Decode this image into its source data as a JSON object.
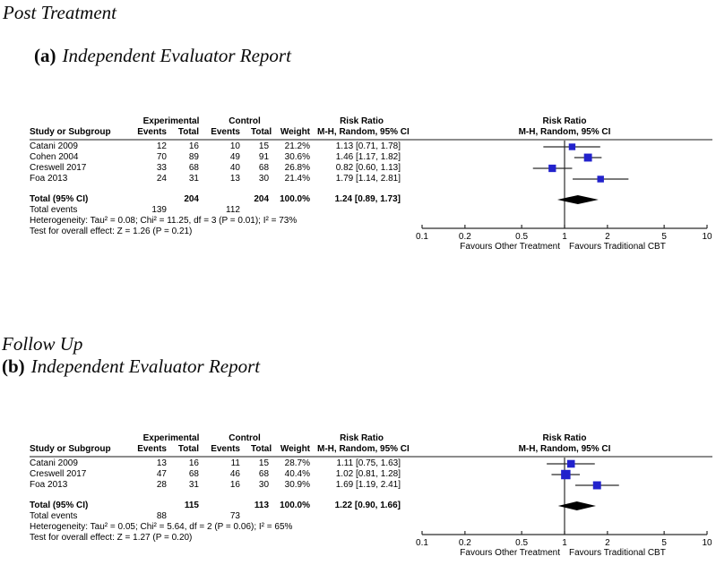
{
  "shared": {
    "study": "Study or Subgroup",
    "experimental": "Experimental",
    "control": "Control",
    "events": "Events",
    "total": "Total",
    "weight": "Weight",
    "colors": {
      "marker": "#2222cc",
      "diamond": "#000000",
      "axis": "#2b2b2b",
      "rule": "#8c8c8c"
    }
  },
  "chart_data": [
    {
      "type": "scatter",
      "subtype": "forest-plot",
      "section_title": "Post Treatment",
      "panel_label": "(a)",
      "panel_title": "Independent Evaluator Report",
      "effect_measure": "Risk Ratio",
      "method": "M-H, Random, 95% CI",
      "x_scale": "log",
      "xlim": [
        0.1,
        10
      ],
      "x_ticks": [
        "0.1",
        "0.2",
        "0.5",
        "1",
        "2",
        "5",
        "10"
      ],
      "favours_left": "Favours Other Treatment",
      "favours_right": "Favours Traditional CBT",
      "studies": [
        {
          "study": "Catani 2009",
          "exp_events": 12,
          "exp_total": 16,
          "ctl_events": 10,
          "ctl_total": 15,
          "weight_pct": 21.2,
          "weight_label": "21.2%",
          "rr": 1.13,
          "ci_low": 0.71,
          "ci_high": 1.78,
          "estimate_label": "1.13 [0.71, 1.78]"
        },
        {
          "study": "Cohen 2004",
          "exp_events": 70,
          "exp_total": 89,
          "ctl_events": 49,
          "ctl_total": 91,
          "weight_pct": 30.6,
          "weight_label": "30.6%",
          "rr": 1.46,
          "ci_low": 1.17,
          "ci_high": 1.82,
          "estimate_label": "1.46 [1.17, 1.82]"
        },
        {
          "study": "Creswell 2017",
          "exp_events": 33,
          "exp_total": 68,
          "ctl_events": 40,
          "ctl_total": 68,
          "weight_pct": 26.8,
          "weight_label": "26.8%",
          "rr": 0.82,
          "ci_low": 0.6,
          "ci_high": 1.13,
          "estimate_label": "0.82 [0.60, 1.13]"
        },
        {
          "study": "Foa 2013",
          "exp_events": 24,
          "exp_total": 31,
          "ctl_events": 13,
          "ctl_total": 30,
          "weight_pct": 21.4,
          "weight_label": "21.4%",
          "rr": 1.79,
          "ci_low": 1.14,
          "ci_high": 2.81,
          "estimate_label": "1.79 [1.14, 2.81]"
        }
      ],
      "total": {
        "label": "Total (95% CI)",
        "exp_total": 204,
        "ctl_total": 204,
        "weight_label": "100.0%",
        "rr": 1.24,
        "ci_low": 0.89,
        "ci_high": 1.73,
        "estimate_label": "1.24 [0.89, 1.73]"
      },
      "total_events": {
        "label": "Total events",
        "exp": 139,
        "ctl": 112
      },
      "heterogeneity": "Heterogeneity: Tau² = 0.08; Chi² = 11.25, df = 3 (P = 0.01); I² = 73%",
      "overall_effect_test": "Test for overall effect: Z = 1.26 (P = 0.21)"
    },
    {
      "type": "scatter",
      "subtype": "forest-plot",
      "section_title": "Follow Up",
      "panel_label": "(b)",
      "panel_title": "Independent Evaluator Report",
      "effect_measure": "Risk Ratio",
      "method": "M-H, Random, 95% CI",
      "x_scale": "log",
      "xlim": [
        0.1,
        10
      ],
      "x_ticks": [
        "0.1",
        "0.2",
        "0.5",
        "1",
        "2",
        "5",
        "10"
      ],
      "favours_left": "Favours Other Treatment",
      "favours_right": "Favours Traditional CBT",
      "studies": [
        {
          "study": "Catani 2009",
          "exp_events": 13,
          "exp_total": 16,
          "ctl_events": 11,
          "ctl_total": 15,
          "weight_pct": 28.7,
          "weight_label": "28.7%",
          "rr": 1.11,
          "ci_low": 0.75,
          "ci_high": 1.63,
          "estimate_label": "1.11 [0.75, 1.63]"
        },
        {
          "study": "Creswell 2017",
          "exp_events": 47,
          "exp_total": 68,
          "ctl_events": 46,
          "ctl_total": 68,
          "weight_pct": 40.4,
          "weight_label": "40.4%",
          "rr": 1.02,
          "ci_low": 0.81,
          "ci_high": 1.28,
          "estimate_label": "1.02 [0.81, 1.28]"
        },
        {
          "study": "Foa 2013",
          "exp_events": 28,
          "exp_total": 31,
          "ctl_events": 16,
          "ctl_total": 30,
          "weight_pct": 30.9,
          "weight_label": "30.9%",
          "rr": 1.69,
          "ci_low": 1.19,
          "ci_high": 2.41,
          "estimate_label": "1.69 [1.19, 2.41]"
        }
      ],
      "total": {
        "label": "Total (95% CI)",
        "exp_total": 115,
        "ctl_total": 113,
        "weight_label": "100.0%",
        "rr": 1.22,
        "ci_low": 0.9,
        "ci_high": 1.66,
        "estimate_label": "1.22 [0.90, 1.66]"
      },
      "total_events": {
        "label": "Total events",
        "exp": 88,
        "ctl": 73
      },
      "heterogeneity": "Heterogeneity: Tau² = 0.05; Chi² = 5.64, df = 2 (P = 0.06); I² = 65%",
      "overall_effect_test": "Test for overall effect: Z = 1.27 (P = 0.20)"
    }
  ]
}
